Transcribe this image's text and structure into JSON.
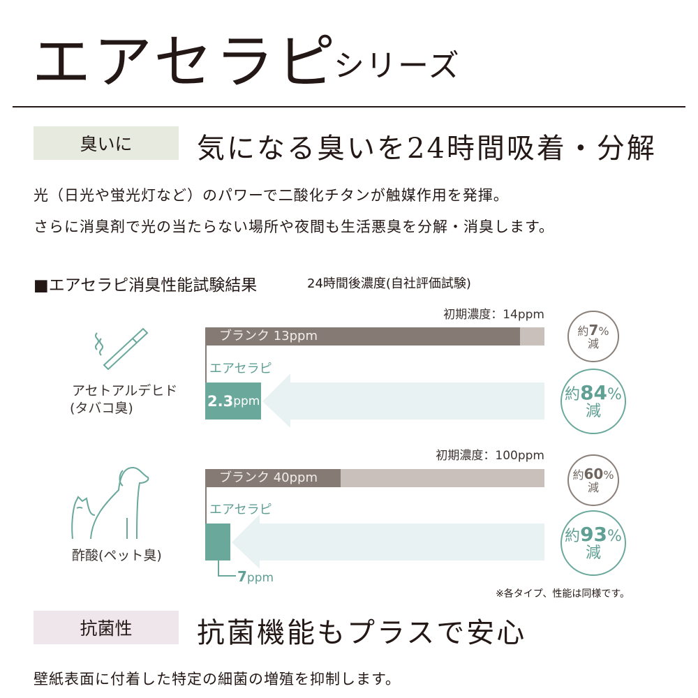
{
  "header": {
    "title": "エアセラピ",
    "subtitle": "シリーズ"
  },
  "section1": {
    "tag": "臭いに",
    "headline": "気になる臭いを24時間吸着・分解",
    "lines": [
      "光（日光や蛍光灯など）のパワーで二酸化チタンが触媒作用を発揮。",
      "さらに消臭剤で光の当たらない場所や夜間も生活悪臭を分解・消臭します。"
    ]
  },
  "test": {
    "heading": "■エアセラピ消臭性能試験結果",
    "subheading": "24時間後濃度(自社評価試験)",
    "groups": [
      {
        "icon": "cigarette-icon",
        "name": "アセトアルデヒド",
        "sub": "(タバコ臭)",
        "initial": "初期濃度：14ppm",
        "initial_value": 14,
        "blank_label": "ブランク 13ppm",
        "blank_value": 13,
        "product_label": "エアセラピ",
        "product_value_text": "2.3",
        "product_unit": "ppm",
        "product_value": 2.3,
        "blank_reduction": {
          "prefix": "約",
          "value": "7",
          "unit": "%",
          "suffix": "減"
        },
        "product_reduction": {
          "prefix": "約",
          "value": "84",
          "unit": "%",
          "suffix": "減"
        }
      },
      {
        "icon": "dog-cat-icon",
        "name": "酢酸",
        "sub": "(ペット臭)",
        "initial": "初期濃度：100ppm",
        "initial_value": 100,
        "blank_label": "ブランク 40ppm",
        "blank_value": 40,
        "product_label": "エアセラピ",
        "product_value_text": "7",
        "product_unit": "ppm",
        "product_value": 7,
        "blank_reduction": {
          "prefix": "約",
          "value": "60",
          "unit": "%",
          "suffix": "減"
        },
        "product_reduction": {
          "prefix": "約",
          "value": "93",
          "unit": "%",
          "suffix": "減"
        }
      }
    ],
    "note": "※各タイプ、性能は同様です。"
  },
  "section2": {
    "tag": "抗菌性",
    "headline": "抗菌機能もプラスで安心",
    "line": "壁紙表面に付着した特定の細菌の増殖を抑制します。"
  },
  "colors": {
    "text": "#231815",
    "tag1": "#e6eadf",
    "tag2": "#efe6ec",
    "blank_dark": "#857a74",
    "blank_light": "#c9c0bb",
    "teal": "#6aa89c",
    "arrow": "#e8f2f2"
  }
}
